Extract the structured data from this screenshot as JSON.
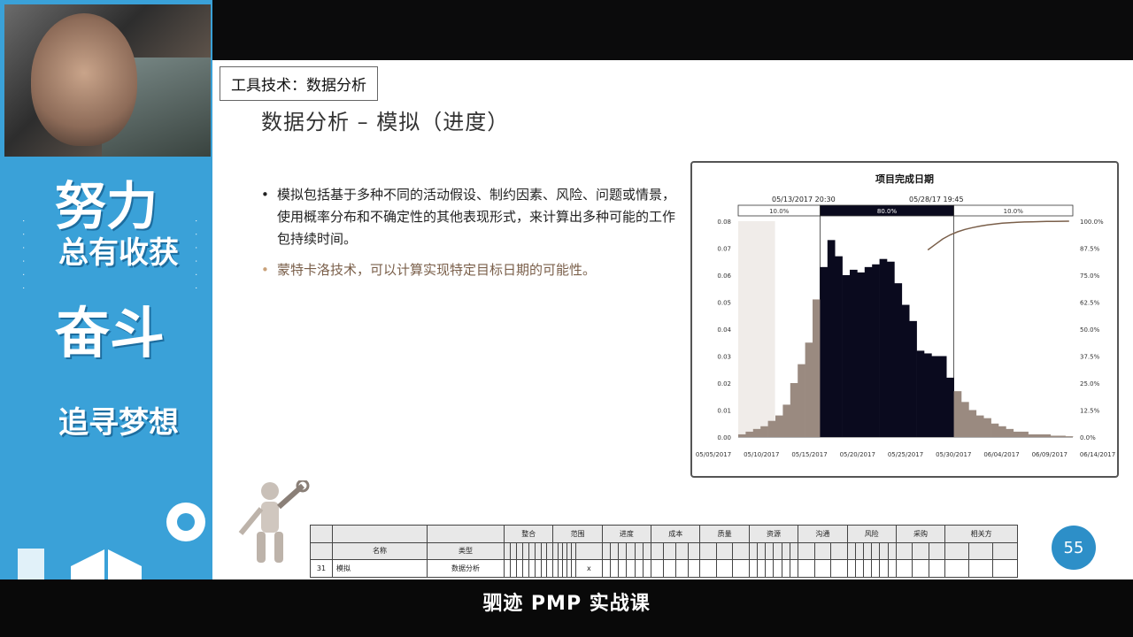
{
  "slide": {
    "tag": "工具技术：数据分析",
    "title": "数据分析 – 模拟（进度）",
    "bullets": [
      "模拟包括基于多种不同的活动假设、制约因素、风险、问题或情景，使用概率分布和不确定性的其他表现形式，来计算出多种可能的工作包持续时间。",
      "蒙特卡洛技术，可以计算实现特定目标日期的可能性。"
    ],
    "page_number": "55"
  },
  "promo": {
    "lines": [
      "努力",
      "总有收获",
      "奋斗",
      "追寻梦想"
    ]
  },
  "table": {
    "groups": [
      "整合",
      "范围",
      "进度",
      "成本",
      "质量",
      "资源",
      "沟通",
      "风险",
      "采购",
      "相关方"
    ],
    "header_name": "名称",
    "header_type": "类型",
    "row_index": "31",
    "row_name": "模拟",
    "row_type": "数据分析",
    "mark": "x"
  },
  "subtitle": "驷迹 PMP 实战课",
  "chart_data": {
    "type": "bar",
    "title": "项目完成日期",
    "left_marker": "05/13/2017  20:30",
    "right_marker": "05/28/17  19:45",
    "band_labels": [
      "10.0%",
      "80.0%",
      "10.0%"
    ],
    "left_ticks": [
      "0.08",
      "0.07",
      "0.06",
      "0.05",
      "0.04",
      "0.03",
      "0.02",
      "0.01",
      "0.00"
    ],
    "right_ticks": [
      "100.0%",
      "87.5%",
      "75.0%",
      "62.5%",
      "50.0%",
      "37.5%",
      "25.0%",
      "12.5%",
      "0.0%"
    ],
    "x_ticks": [
      "05/05/2017",
      "05/10/2017",
      "05/15/2017",
      "05/20/2017",
      "05/25/2017",
      "05/30/2017",
      "06/04/2017",
      "06/09/2017",
      "06/14/2017"
    ],
    "ylim": [
      0,
      0.08
    ],
    "values": [
      0.001,
      0.002,
      0.003,
      0.004,
      0.006,
      0.008,
      0.012,
      0.02,
      0.027,
      0.035,
      0.051,
      0.063,
      0.073,
      0.067,
      0.06,
      0.062,
      0.061,
      0.063,
      0.064,
      0.066,
      0.065,
      0.057,
      0.049,
      0.043,
      0.032,
      0.031,
      0.03,
      0.03,
      0.022,
      0.017,
      0.013,
      0.01,
      0.008,
      0.007,
      0.005,
      0.004,
      0.003,
      0.002,
      0.002,
      0.001,
      0.001,
      0.001,
      0.0005,
      0.0005,
      0.0003
    ],
    "highlight_start": 11,
    "highlight_end": 28,
    "colors": {
      "highlight": "#0a0a1e",
      "normal": "#9a8a80",
      "curve": "#7a5f4a"
    }
  }
}
